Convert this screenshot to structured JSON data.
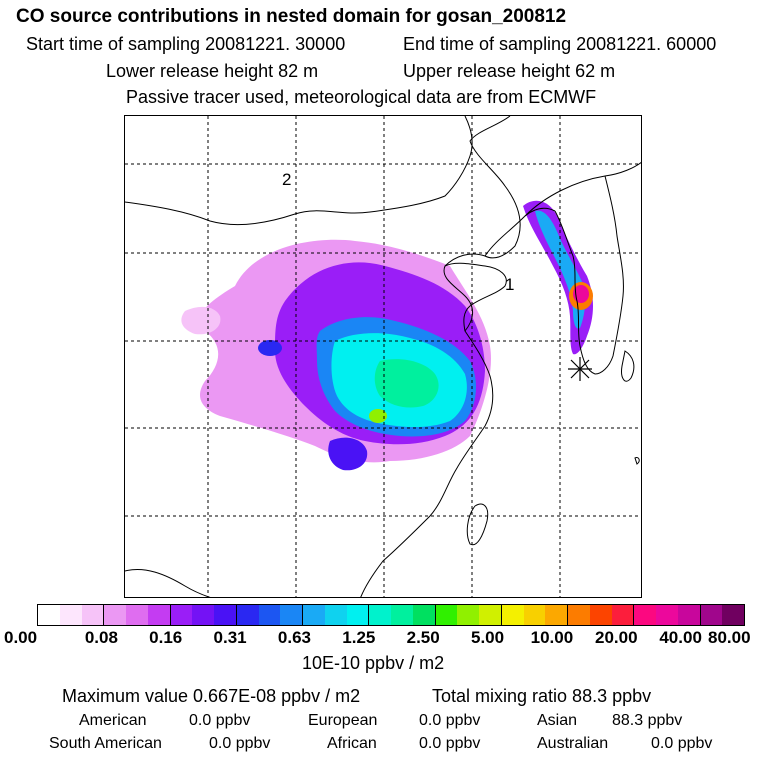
{
  "header": {
    "title": "CO  source contributions in nested domain for gosan_200812",
    "start_time": "Start time of sampling 20081221. 30000",
    "end_time": "End time of sampling 20081221. 60000",
    "lower_height": "Lower release height   82 m",
    "upper_height": "Upper release height   62 m",
    "tracer_note": "Passive tracer used, meteorological data are from ECMWF"
  },
  "map": {
    "label_1": "1",
    "label_2": "2",
    "receptor_icon": "asterisk-receptor-icon"
  },
  "chart_data": {
    "type": "heatmap",
    "title": "CO  source contributions in nested domain for gosan_200812",
    "colorbar_ticks": [
      "0.00",
      "0.08",
      "0.16",
      "0.31",
      "0.63",
      "1.25",
      "2.50",
      "5.00",
      "10.00",
      "20.00",
      "40.00",
      "80.00"
    ],
    "colorbar_unit": "10E-10 ppbv / m2",
    "colors": [
      "#ffffff",
      "#fde6fd",
      "#f6c3f8",
      "#eb98f3",
      "#df6df0",
      "#c43cf2",
      "#9a1ef7",
      "#7412f5",
      "#4a12f5",
      "#2a28f2",
      "#1c56f2",
      "#1a86f5",
      "#1aaaf5",
      "#0fd2ef",
      "#00f0f0",
      "#00f2cc",
      "#00f09e",
      "#00e060",
      "#30f000",
      "#90f000",
      "#d0f000",
      "#f4f000",
      "#f8d000",
      "#fca800",
      "#fc7c00",
      "#fc4400",
      "#fc1e3c",
      "#fc0880",
      "#ec089c",
      "#c8069c",
      "#a0068c",
      "#700060"
    ],
    "maximum_value": "Maximum value  0.667E-08 ppbv / m2",
    "total_mixing_ratio": "Total mixing ratio       88.3 ppbv",
    "sources": [
      {
        "name": "American",
        "value": "0.0 ppbv"
      },
      {
        "name": "European",
        "value": "0.0 ppbv"
      },
      {
        "name": "Asian",
        "value": "88.3 ppbv"
      },
      {
        "name": "South American",
        "value": "0.0 ppbv"
      },
      {
        "name": "African",
        "value": "0.0 ppbv"
      },
      {
        "name": "Australian",
        "value": "0.0 ppbv"
      }
    ]
  }
}
